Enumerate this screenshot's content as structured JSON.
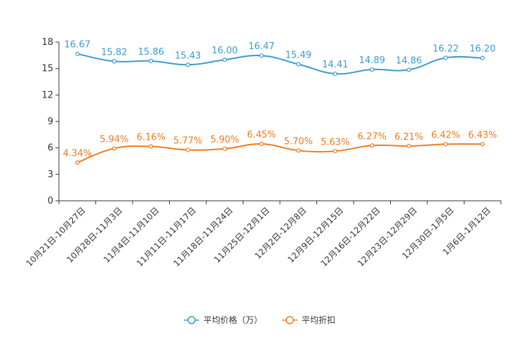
{
  "chart_data": {
    "type": "line",
    "categories": [
      "10月21日-10月27日",
      "10月28日-11月3日",
      "11月4日-11月10日",
      "11月11日-11月17日",
      "11月18日-11月24日",
      "11月25日-12月1日",
      "12月2日-12月8日",
      "12月9日-12月15日",
      "12月16日-12月22日",
      "12月23日-12月29日",
      "12月30日-1月5日",
      "1月6日-1月12日"
    ],
    "ylim": [
      0,
      18
    ],
    "yticks": [
      0,
      3,
      6,
      9,
      12,
      15,
      18
    ],
    "legend_position": "bottom-center",
    "series": [
      {
        "name": "平均价格（万）",
        "color": "#3a9bce",
        "values": [
          16.67,
          15.82,
          15.86,
          15.43,
          16.0,
          16.47,
          15.49,
          14.41,
          14.89,
          14.86,
          16.22,
          16.2
        ],
        "labels": [
          "16.67",
          "15.82",
          "15.86",
          "15.43",
          "16.00",
          "16.47",
          "15.49",
          "14.41",
          "14.89",
          "14.86",
          "16.22",
          "16.20"
        ]
      },
      {
        "name": "平均折扣",
        "color": "#f07b1d",
        "values": [
          4.34,
          5.94,
          6.16,
          5.77,
          5.9,
          6.45,
          5.7,
          5.63,
          6.27,
          6.21,
          6.42,
          6.43
        ],
        "labels": [
          "4.34%",
          "5.94%",
          "6.16%",
          "5.77%",
          "5.90%",
          "6.45%",
          "5.70%",
          "5.63%",
          "6.27%",
          "6.21%",
          "6.42%",
          "6.43%"
        ]
      }
    ]
  }
}
